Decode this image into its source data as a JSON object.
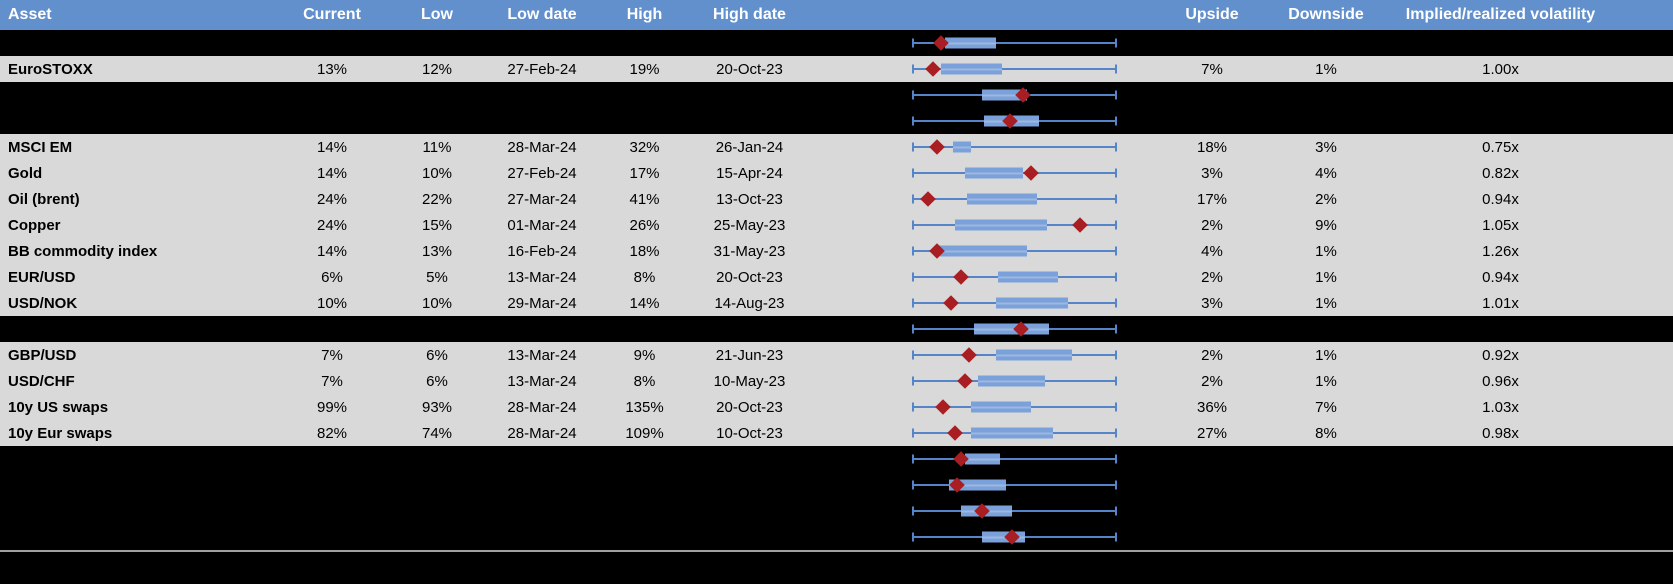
{
  "colors": {
    "header_bg": "#6290CD",
    "header_text": "#FFFFFF",
    "data_row_bg": "#D9D9D9",
    "spacer_row_bg": "#000000",
    "box_fill": "#7BA1DA",
    "whisker_line": "#5585C8",
    "marker_red": "#A81E22",
    "footer_divider": "#A0A0A0"
  },
  "table": {
    "columns": {
      "asset": "Asset",
      "current": "Current",
      "low": "Low",
      "low_date": "Low date",
      "high": "High",
      "high_date": "High date",
      "chart": "",
      "upside": "Upside",
      "downside": "Downside",
      "implied_realized": "Implied/realized volatility"
    },
    "rows": [
      {
        "type": "spacer",
        "box": {
          "lo": 16,
          "hi": 41,
          "marker": 14
        }
      },
      {
        "type": "data",
        "asset": "EuroSTOXX",
        "current": "13%",
        "low": "12%",
        "low_date": "27-Feb-24",
        "high": "19%",
        "high_date": "20-Oct-23",
        "upside": "7%",
        "downside": "1%",
        "implied_realized": "1.00x",
        "box": {
          "lo": 14,
          "hi": 44,
          "marker": 10
        }
      },
      {
        "type": "spacer",
        "box": {
          "lo": 34,
          "hi": 56,
          "marker": 54
        }
      },
      {
        "type": "spacer",
        "box": {
          "lo": 35,
          "hi": 62,
          "marker": 48
        }
      },
      {
        "type": "data",
        "asset": "MSCI EM",
        "current": "14%",
        "low": "11%",
        "low_date": "28-Mar-24",
        "high": "32%",
        "high_date": "26-Jan-24",
        "upside": "18%",
        "downside": "3%",
        "implied_realized": "0.75x",
        "box": {
          "lo": 20,
          "hi": 29,
          "marker": 12
        }
      },
      {
        "type": "data",
        "asset": "Gold",
        "current": "14%",
        "low": "10%",
        "low_date": "27-Feb-24",
        "high": "17%",
        "high_date": "15-Apr-24",
        "upside": "3%",
        "downside": "4%",
        "implied_realized": "0.82x",
        "box": {
          "lo": 26,
          "hi": 54,
          "marker": 58
        }
      },
      {
        "type": "data",
        "asset": "Oil (brent)",
        "current": "24%",
        "low": "22%",
        "low_date": "27-Mar-24",
        "high": "41%",
        "high_date": "13-Oct-23",
        "upside": "17%",
        "downside": "2%",
        "implied_realized": "0.94x",
        "box": {
          "lo": 27,
          "hi": 61,
          "marker": 8
        }
      },
      {
        "type": "data",
        "asset": "Copper",
        "current": "24%",
        "low": "15%",
        "low_date": "01-Mar-24",
        "high": "26%",
        "high_date": "25-May-23",
        "upside": "2%",
        "downside": "9%",
        "implied_realized": "1.05x",
        "box": {
          "lo": 21,
          "hi": 66,
          "marker": 82
        }
      },
      {
        "type": "data",
        "asset": "BB commodity index",
        "current": "14%",
        "low": "13%",
        "low_date": "16-Feb-24",
        "high": "18%",
        "high_date": "31-May-23",
        "upside": "4%",
        "downside": "1%",
        "implied_realized": "1.26x",
        "box": {
          "lo": 12,
          "hi": 56,
          "marker": 12
        }
      },
      {
        "type": "data",
        "asset": "EUR/USD",
        "current": "6%",
        "low": "5%",
        "low_date": "13-Mar-24",
        "high": "8%",
        "high_date": "20-Oct-23",
        "upside": "2%",
        "downside": "1%",
        "implied_realized": "0.94x",
        "box": {
          "lo": 42,
          "hi": 71,
          "marker": 24
        }
      },
      {
        "type": "data",
        "asset": "USD/NOK",
        "current": "10%",
        "low": "10%",
        "low_date": "29-Mar-24",
        "high": "14%",
        "high_date": "14-Aug-23",
        "upside": "3%",
        "downside": "1%",
        "implied_realized": "1.01x",
        "box": {
          "lo": 41,
          "hi": 76,
          "marker": 19
        }
      },
      {
        "type": "spacer",
        "box": {
          "lo": 30,
          "hi": 67,
          "marker": 53
        }
      },
      {
        "type": "data",
        "asset": "GBP/USD",
        "current": "7%",
        "low": "6%",
        "low_date": "13-Mar-24",
        "high": "9%",
        "high_date": "21-Jun-23",
        "upside": "2%",
        "downside": "1%",
        "implied_realized": "0.92x",
        "box": {
          "lo": 41,
          "hi": 78,
          "marker": 28
        }
      },
      {
        "type": "data",
        "asset": "USD/CHF",
        "current": "7%",
        "low": "6%",
        "low_date": "13-Mar-24",
        "high": "8%",
        "high_date": "10-May-23",
        "upside": "2%",
        "downside": "1%",
        "implied_realized": "0.96x",
        "box": {
          "lo": 32,
          "hi": 65,
          "marker": 26
        }
      },
      {
        "type": "data",
        "asset": "10y US swaps",
        "current": "99%",
        "low": "93%",
        "low_date": "28-Mar-24",
        "high": "135%",
        "high_date": "20-Oct-23",
        "upside": "36%",
        "downside": "7%",
        "implied_realized": "1.03x",
        "box": {
          "lo": 29,
          "hi": 58,
          "marker": 15
        }
      },
      {
        "type": "data",
        "asset": "10y Eur swaps",
        "current": "82%",
        "low": "74%",
        "low_date": "28-Mar-24",
        "high": "109%",
        "high_date": "10-Oct-23",
        "upside": "27%",
        "downside": "8%",
        "implied_realized": "0.98x",
        "box": {
          "lo": 29,
          "hi": 69,
          "marker": 21
        }
      },
      {
        "type": "spacer",
        "box": {
          "lo": 26,
          "hi": 43,
          "marker": 24
        }
      },
      {
        "type": "spacer",
        "box": {
          "lo": 18,
          "hi": 46,
          "marker": 22
        }
      },
      {
        "type": "spacer",
        "box": {
          "lo": 24,
          "hi": 49,
          "marker": 34
        }
      },
      {
        "type": "spacer",
        "box": {
          "lo": 34,
          "hi": 55,
          "marker": 49
        }
      }
    ]
  }
}
